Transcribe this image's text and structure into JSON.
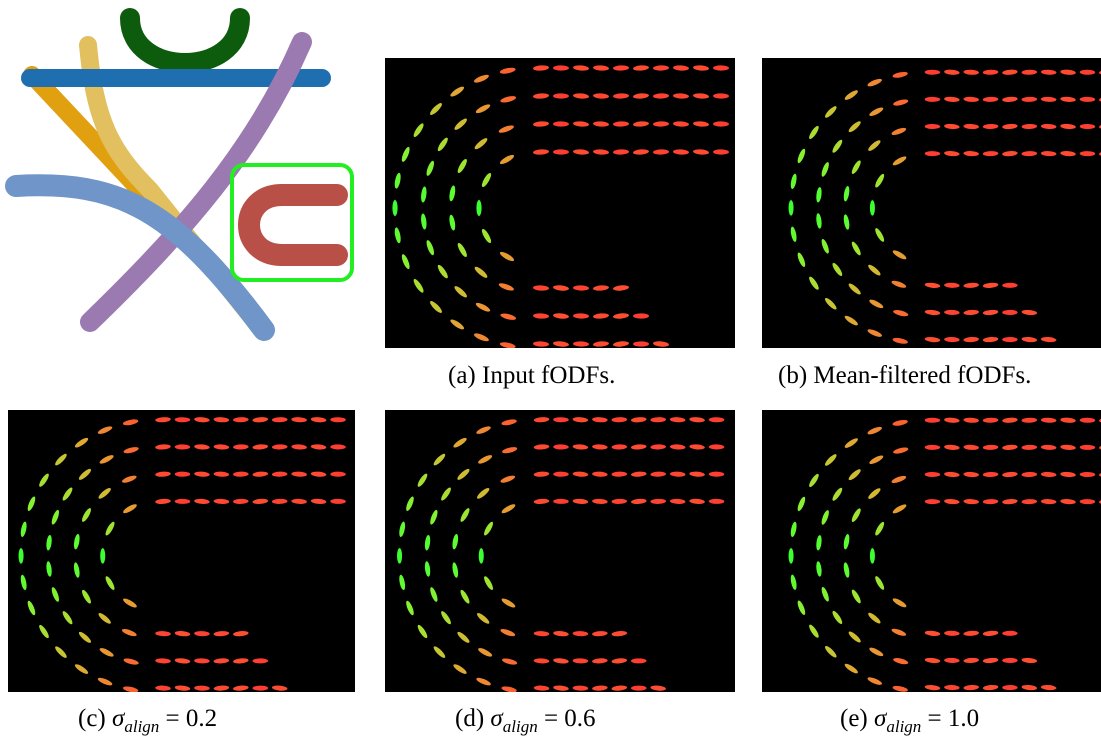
{
  "figure": {
    "panels": [
      {
        "label": "(a)",
        "caption": "Input fODFs."
      },
      {
        "label": "(b)",
        "caption": "Mean-filtered fODFs."
      },
      {
        "label": "(c)",
        "symbol": "σ",
        "subscript": "align",
        "equals": "= 0.2"
      },
      {
        "label": "(d)",
        "symbol": "σ",
        "subscript": "align",
        "equals": "= 0.6"
      },
      {
        "label": "(e)",
        "symbol": "σ",
        "subscript": "align",
        "equals": "= 1.0"
      }
    ]
  }
}
